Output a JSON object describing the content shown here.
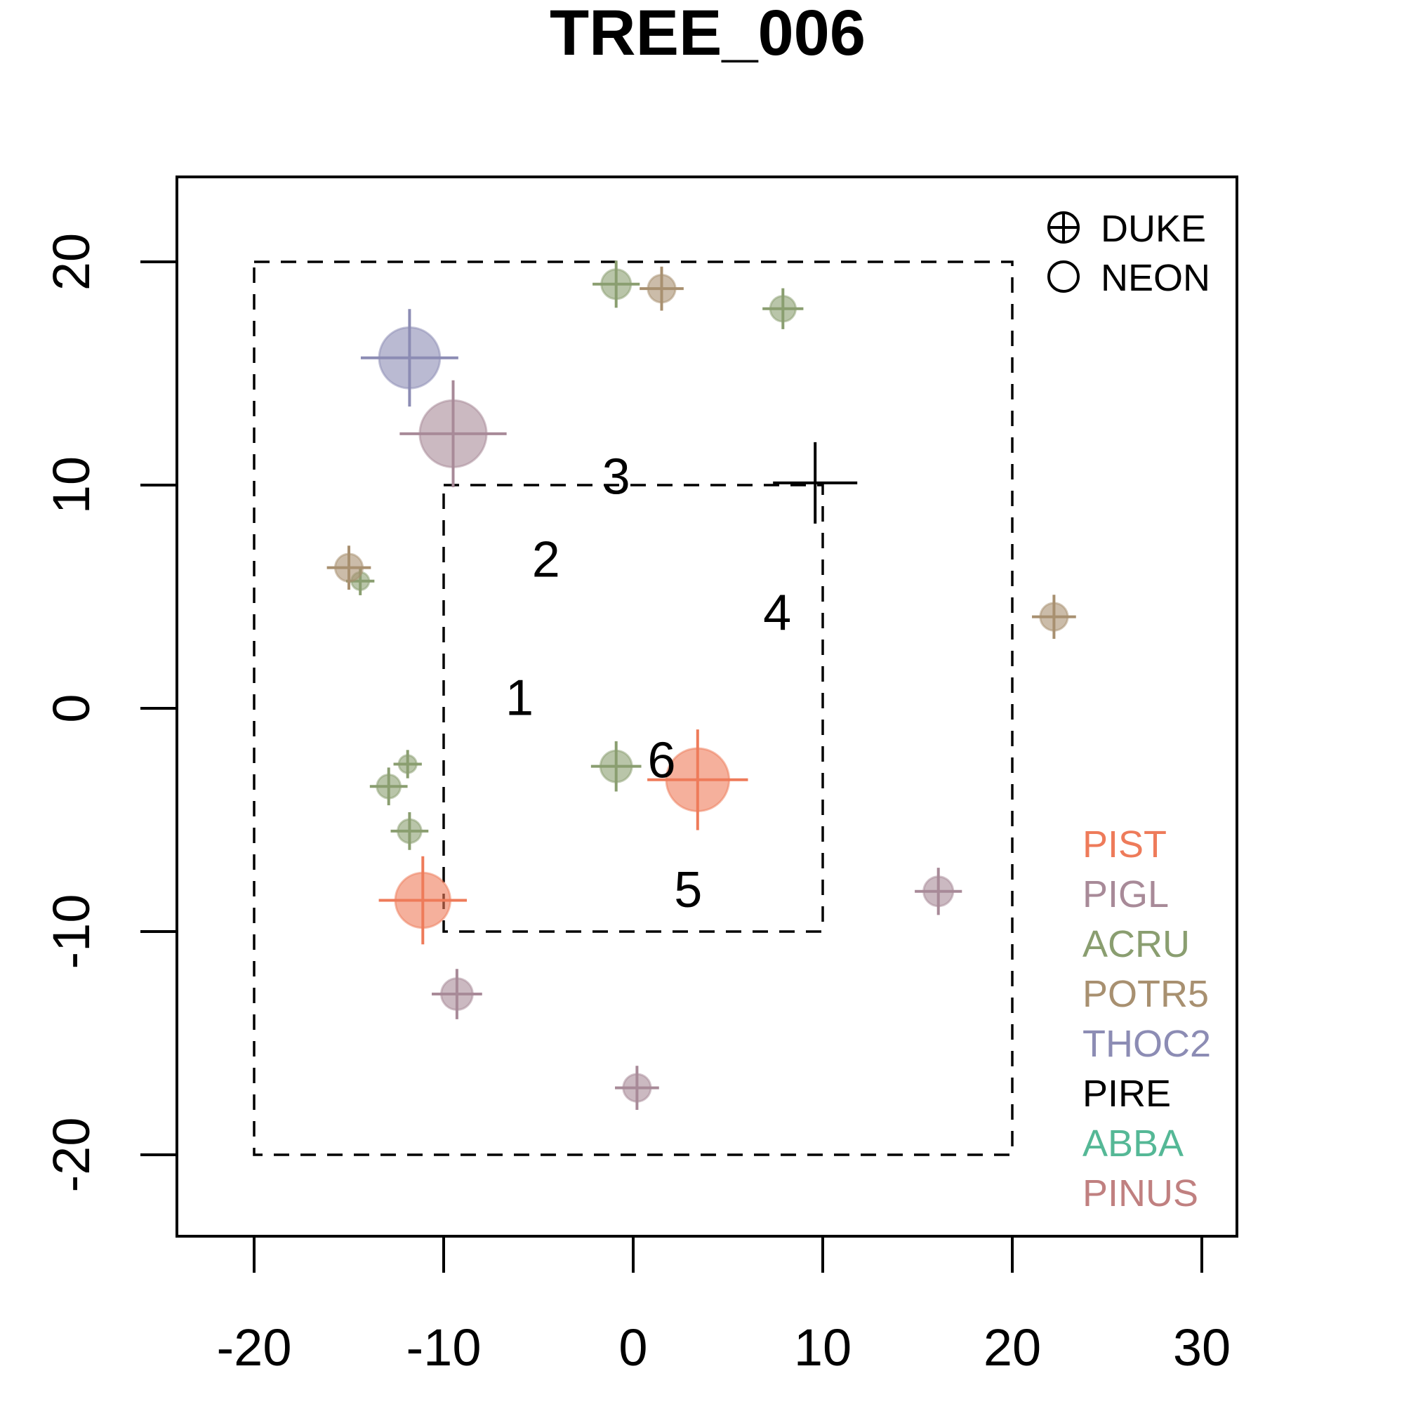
{
  "chart_data": {
    "type": "scatter",
    "title": "TREE_006",
    "xlabel": "",
    "ylabel": "",
    "xlim": [
      -24,
      32
    ],
    "ylim": [
      -24,
      24
    ],
    "x_ticks": [
      -20,
      -10,
      0,
      10,
      20,
      30
    ],
    "y_ticks": [
      -20,
      -10,
      0,
      10,
      20
    ],
    "x_tick_labels": [
      "-20",
      "-10",
      "0",
      "10",
      "20",
      "30"
    ],
    "y_tick_labels": [
      "-20",
      "-10",
      "0",
      "10",
      "20"
    ],
    "grid": false,
    "legend_position": "top-right",
    "shape_legend": [
      {
        "label": "DUKE",
        "marker": "circle-plus"
      },
      {
        "label": "NEON",
        "marker": "circle"
      }
    ],
    "species_legend": [
      {
        "label": "PIST",
        "color": "#EE7B5A"
      },
      {
        "label": "PIGL",
        "color": "#A88A98"
      },
      {
        "label": "ACRU",
        "color": "#8A9E70"
      },
      {
        "label": "POTR5",
        "color": "#A89070"
      },
      {
        "label": "THOC2",
        "color": "#8C8CB4"
      },
      {
        "label": "PIRE",
        "color": "#000000"
      },
      {
        "label": "ABBA",
        "color": "#55B896"
      },
      {
        "label": "PINUS",
        "color": "#C08080"
      }
    ],
    "boxes": [
      {
        "x0": -20,
        "y0": -20,
        "x1": 20,
        "y1": 20
      },
      {
        "x0": -10,
        "y0": -10,
        "x1": 10,
        "y1": 10
      }
    ],
    "region_labels": [
      {
        "text": "1",
        "x": -6,
        "y": -0.3
      },
      {
        "text": "2",
        "x": -4.6,
        "y": 5.9
      },
      {
        "text": "3",
        "x": -0.9,
        "y": 9.6
      },
      {
        "text": "4",
        "x": 7.6,
        "y": 3.5
      },
      {
        "text": "5",
        "x": 2.9,
        "y": -8.9
      },
      {
        "text": "6",
        "x": 1.5,
        "y": -3.1
      }
    ],
    "series": [
      {
        "species": "PIST",
        "x": 3.4,
        "y": -3.2,
        "size": 3.2
      },
      {
        "species": "PIST",
        "x": -11.1,
        "y": -8.6,
        "size": 2.8
      },
      {
        "species": "PIGL",
        "x": -9.5,
        "y": 12.3,
        "size": 3.4
      },
      {
        "species": "PIGL",
        "x": 16.1,
        "y": -8.2,
        "size": 1.5
      },
      {
        "species": "PIGL",
        "x": -9.3,
        "y": -12.8,
        "size": 1.6
      },
      {
        "species": "PIGL",
        "x": 0.2,
        "y": -17.0,
        "size": 1.4
      },
      {
        "species": "ACRU",
        "x": -0.9,
        "y": 19.0,
        "size": 1.5
      },
      {
        "species": "ACRU",
        "x": 7.9,
        "y": 17.9,
        "size": 1.3
      },
      {
        "species": "ACRU",
        "x": -14.4,
        "y": 5.7,
        "size": 0.9
      },
      {
        "species": "ACRU",
        "x": -0.9,
        "y": -2.6,
        "size": 1.6
      },
      {
        "species": "ACRU",
        "x": -11.9,
        "y": -2.5,
        "size": 0.9
      },
      {
        "species": "ACRU",
        "x": -12.9,
        "y": -3.5,
        "size": 1.2
      },
      {
        "species": "ACRU",
        "x": -11.8,
        "y": -5.5,
        "size": 1.2
      },
      {
        "species": "POTR5",
        "x": 1.5,
        "y": 18.8,
        "size": 1.4
      },
      {
        "species": "POTR5",
        "x": -15.0,
        "y": 6.3,
        "size": 1.4
      },
      {
        "species": "POTR5",
        "x": 22.2,
        "y": 4.1,
        "size": 1.4
      },
      {
        "species": "THOC2",
        "x": -11.8,
        "y": 15.7,
        "size": 3.1
      },
      {
        "species": "PIRE",
        "x": 9.6,
        "y": 10.1,
        "size": 2.0
      }
    ]
  }
}
